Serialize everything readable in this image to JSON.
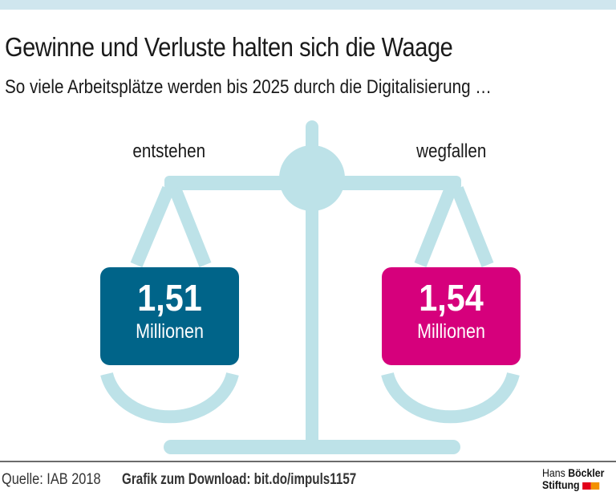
{
  "header": {
    "title": "Gewinne und Verluste halten sich die Waage",
    "subtitle": "So viele Arbeitsplätze werden bis 2025 durch die Digitalisierung …"
  },
  "chart_data": {
    "type": "infographic-scale",
    "categories": [
      "entstehen",
      "wegfallen"
    ],
    "values": [
      1.51,
      1.54
    ],
    "unit": "Millionen",
    "items": [
      {
        "label": "entstehen",
        "value_text": "1,51",
        "unit": "Millionen",
        "color": "#006489"
      },
      {
        "label": "wegfallen",
        "value_text": "1,54",
        "unit": "Millionen",
        "color": "#d6007c"
      }
    ]
  },
  "colors": {
    "scale": "#bde2e8",
    "topband": "#cfe6ee"
  },
  "footer": {
    "source": "Quelle: IAB 2018",
    "download": "Grafik zum Download: bit.do/impuls1157",
    "logo_line1_a": "Hans",
    "logo_line1_b": "Böckler",
    "logo_line2": "Stiftung",
    "logo_colors": [
      "#e2001a",
      "#f39200"
    ]
  }
}
